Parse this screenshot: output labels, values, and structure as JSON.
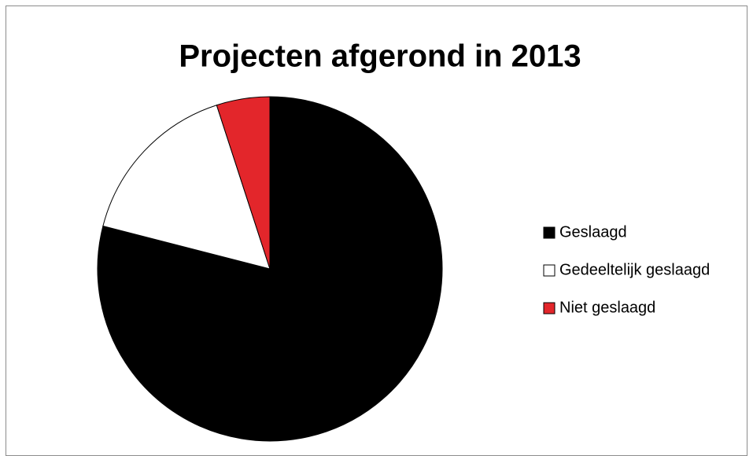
{
  "chart_data": {
    "type": "pie",
    "title": "Projecten afgerond in 2013",
    "categories": [
      "Geslaagd",
      "Gedeeltelijk geslaagd",
      "Niet geslaagd"
    ],
    "values": [
      79,
      16,
      5
    ],
    "colors": [
      "#000000",
      "#ffffff",
      "#e3262b"
    ],
    "legend": "right"
  }
}
